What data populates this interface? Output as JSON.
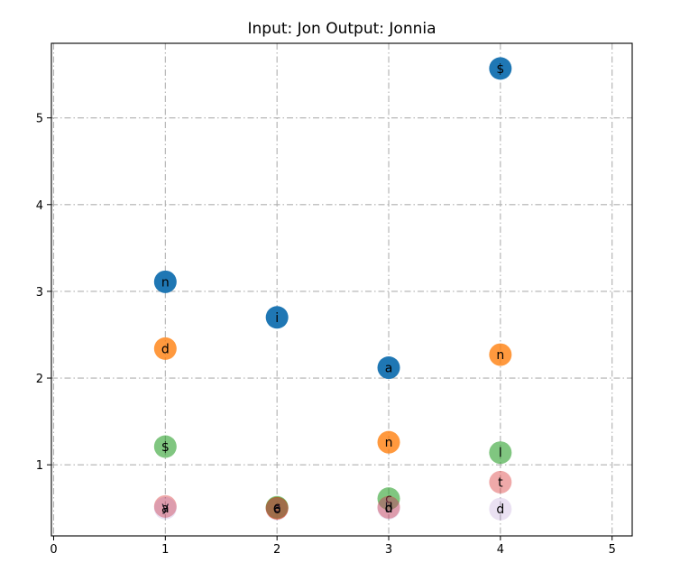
{
  "chart_data": {
    "type": "scatter",
    "title": "Input: Jon   Output: Jonnia",
    "xlabel": "",
    "ylabel": "",
    "xlim": [
      -0.02,
      5.18
    ],
    "ylim": [
      0.18,
      5.86
    ],
    "xticks": [
      0,
      1,
      2,
      3,
      4,
      5
    ],
    "yticks": [
      1,
      2,
      3,
      4,
      5
    ],
    "grid": true,
    "series": [
      {
        "color": "#1f77b4",
        "opacity": 1.0,
        "points": [
          {
            "x": 1,
            "y": 3.11,
            "label": "n"
          },
          {
            "x": 2,
            "y": 2.7,
            "label": "i"
          },
          {
            "x": 3,
            "y": 2.12,
            "label": "a"
          },
          {
            "x": 4,
            "y": 5.57,
            "label": "$"
          }
        ]
      },
      {
        "color": "#ff7f0e",
        "opacity": 0.8,
        "points": [
          {
            "x": 1,
            "y": 2.34,
            "label": "d"
          },
          {
            "x": 2,
            "y": 0.5,
            "label": "o"
          },
          {
            "x": 3,
            "y": 1.26,
            "label": "n"
          },
          {
            "x": 4,
            "y": 2.27,
            "label": "n"
          }
        ]
      },
      {
        "color": "#2ca02c",
        "opacity": 0.6,
        "points": [
          {
            "x": 1,
            "y": 1.21,
            "label": "$"
          },
          {
            "x": 2,
            "y": 0.51,
            "label": "c"
          },
          {
            "x": 3,
            "y": 0.61,
            "label": "c"
          },
          {
            "x": 4,
            "y": 1.14,
            "label": "l"
          }
        ]
      },
      {
        "color": "#d62728",
        "opacity": 0.4,
        "points": [
          {
            "x": 1,
            "y": 0.52,
            "label": "y"
          },
          {
            "x": 2,
            "y": 0.5,
            "label": "e"
          },
          {
            "x": 3,
            "y": 0.51,
            "label": "b"
          },
          {
            "x": 4,
            "y": 0.8,
            "label": "t"
          }
        ]
      },
      {
        "color": "#9467bd",
        "opacity": 0.2,
        "points": [
          {
            "x": 1,
            "y": 0.5,
            "label": "a"
          },
          {
            "x": 2,
            "y": 0.49,
            "label": "6"
          },
          {
            "x": 3,
            "y": 0.5,
            "label": "d"
          },
          {
            "x": 4,
            "y": 0.49,
            "label": "d"
          }
        ]
      }
    ]
  }
}
